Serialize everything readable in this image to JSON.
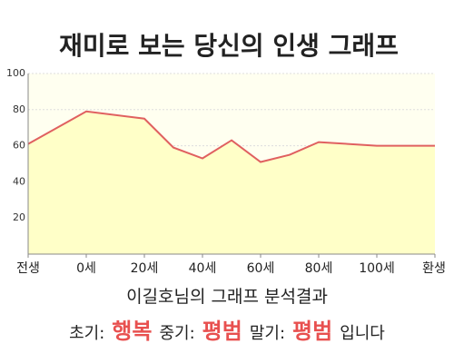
{
  "chart_data": {
    "type": "area",
    "title": "재미로 보는 당신의 인생 그래프",
    "x": [
      -20,
      0,
      20,
      30,
      40,
      50,
      60,
      70,
      80,
      100,
      120
    ],
    "values": [
      61,
      79,
      75,
      59,
      53,
      63,
      51,
      55,
      62,
      60,
      60
    ],
    "color": "#e06060",
    "fill": "#ffffc8",
    "xlim": [
      -20,
      120
    ],
    "xticks": [
      {
        "value": -20,
        "label": "전생"
      },
      {
        "value": 0,
        "label": "0세"
      },
      {
        "value": 20,
        "label": "20세"
      },
      {
        "value": 40,
        "label": "40세"
      },
      {
        "value": 60,
        "label": "60세"
      },
      {
        "value": 80,
        "label": "80세"
      },
      {
        "value": 100,
        "label": "100세"
      },
      {
        "value": 120,
        "label": "환생"
      }
    ],
    "ylim": [
      0,
      100
    ],
    "yticks": [
      20,
      40,
      60,
      80,
      100
    ],
    "grid": true
  },
  "result": {
    "heading": "이길호님의 그래프 분석결과",
    "items": [
      {
        "label": "초기:",
        "value": "행복"
      },
      {
        "label": "중기:",
        "value": "평범"
      },
      {
        "label": "말기:",
        "value": "평범"
      }
    ],
    "ending": "입니다"
  }
}
